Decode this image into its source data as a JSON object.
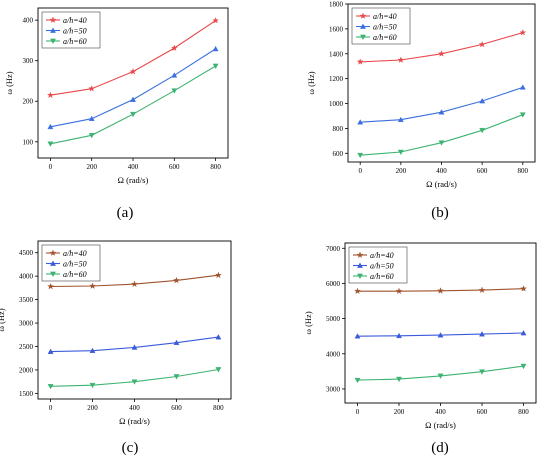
{
  "chart_data": [
    {
      "type": "line",
      "caption": "(a)",
      "xlabel": "Ω (rad/s)",
      "ylabel": "ω (Hz)",
      "x": [
        0,
        200,
        400,
        600,
        800
      ],
      "xticks": [
        "0",
        "200",
        "400",
        "600",
        "800"
      ],
      "xlim": [
        -60,
        860
      ],
      "ylim": [
        60,
        430
      ],
      "yticks": [
        100,
        200,
        300,
        400
      ],
      "ytick_labels": [
        "100",
        "200",
        "300",
        "400"
      ],
      "legend_position": "top-left",
      "series": [
        {
          "name": "a/h=40",
          "color": "#e8474a",
          "marker": "star",
          "values": [
            215,
            231,
            273,
            331,
            399
          ]
        },
        {
          "name": "a/h=50",
          "color": "#3b6fe0",
          "marker": "triangle",
          "values": [
            137,
            157,
            204,
            264,
            329
          ]
        },
        {
          "name": "a/h=60",
          "color": "#3cb371",
          "marker": "down-triangle",
          "values": [
            95,
            116,
            168,
            226,
            287
          ]
        }
      ]
    },
    {
      "type": "line",
      "caption": "(b)",
      "xlabel": "Ω (rad/s)",
      "ylabel": "ω (Hz)",
      "x": [
        0,
        200,
        400,
        600,
        800
      ],
      "xticks": [
        "0",
        "200",
        "400",
        "600",
        "800"
      ],
      "xlim": [
        -60,
        860
      ],
      "ylim": [
        530,
        1800
      ],
      "yticks": [
        600,
        800,
        1000,
        1200,
        1400,
        1600,
        1800
      ],
      "ytick_labels": [
        "600",
        "800",
        "1000",
        "1200",
        "1400",
        "1600",
        "1800"
      ],
      "legend_position": "top-left",
      "series": [
        {
          "name": "a/h=40",
          "color": "#e8474a",
          "marker": "star",
          "values": [
            1335,
            1350,
            1400,
            1475,
            1570
          ]
        },
        {
          "name": "a/h=50",
          "color": "#3b6fe0",
          "marker": "triangle",
          "values": [
            850,
            870,
            930,
            1020,
            1130
          ]
        },
        {
          "name": "a/h=60",
          "color": "#3cb371",
          "marker": "down-triangle",
          "values": [
            585,
            610,
            685,
            785,
            910
          ]
        }
      ]
    },
    {
      "type": "line",
      "caption": "(c)",
      "xlabel": "Ω (rad/s)",
      "ylabel": "ω (Hz)",
      "x": [
        0,
        200,
        400,
        600,
        800
      ],
      "xticks": [
        "0",
        "200",
        "400",
        "600",
        "800"
      ],
      "xlim": [
        -60,
        860
      ],
      "ylim": [
        1380,
        4750
      ],
      "yticks": [
        1500,
        2000,
        2500,
        3000,
        3500,
        4000,
        4500
      ],
      "ytick_labels": [
        "1500",
        "2000",
        "2500",
        "3000",
        "3500",
        "4000",
        "4500"
      ],
      "legend_position": "top-left",
      "series": [
        {
          "name": "a/h=40",
          "color": "#a0522d",
          "marker": "star",
          "values": [
            3780,
            3790,
            3830,
            3910,
            4020
          ]
        },
        {
          "name": "a/h=50",
          "color": "#3b5bdb",
          "marker": "triangle",
          "values": [
            2390,
            2410,
            2480,
            2580,
            2700
          ]
        },
        {
          "name": "a/h=60",
          "color": "#3cb371",
          "marker": "down-triangle",
          "values": [
            1650,
            1675,
            1750,
            1860,
            2010
          ]
        }
      ]
    },
    {
      "type": "line",
      "caption": "(d)",
      "xlabel": "Ω (rad/s)",
      "ylabel": "ω (Hz)",
      "x": [
        0,
        200,
        400,
        600,
        800
      ],
      "xticks": [
        "0",
        "200",
        "400",
        "600",
        "800"
      ],
      "xlim": [
        -60,
        860
      ],
      "ylim": [
        2600,
        7150
      ],
      "yticks": [
        3000,
        4000,
        5000,
        6000,
        7000
      ],
      "ytick_labels": [
        "3000",
        "4000",
        "5000",
        "6000",
        "7000"
      ],
      "legend_position": "top-left",
      "series": [
        {
          "name": "a/h=40",
          "color": "#a0522d",
          "marker": "star",
          "values": [
            5780,
            5780,
            5790,
            5810,
            5850
          ]
        },
        {
          "name": "a/h=50",
          "color": "#3b5bdb",
          "marker": "triangle",
          "values": [
            4500,
            4510,
            4530,
            4560,
            4590
          ]
        },
        {
          "name": "a/h=60",
          "color": "#3cb371",
          "marker": "down-triangle",
          "values": [
            3250,
            3280,
            3370,
            3490,
            3650
          ]
        }
      ]
    }
  ]
}
